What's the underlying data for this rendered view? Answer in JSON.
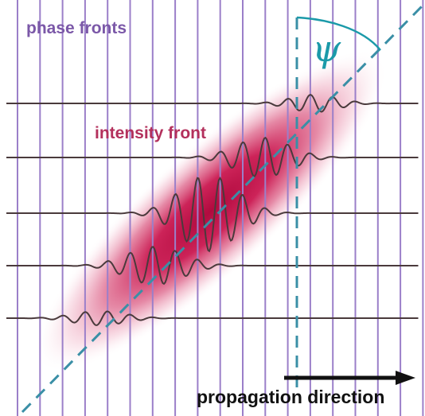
{
  "labels": {
    "phase_fronts": "phase fronts",
    "intensity_front": "intensity front",
    "angle_symbol": "ψ",
    "propagation": "propagation direction"
  },
  "colors": {
    "phase_front_line": "#9b7fc9",
    "intensity_blob": "#c8104a",
    "wave_trace": "#4a3a3c",
    "axis_dashed": "#3a8fa6",
    "angle_arc": "#1b9aa9",
    "arrow": "#111111",
    "phase_label": "#7b58a8",
    "intensity_label": "#b3305c"
  },
  "icons": {
    "arrow": "right-arrow-icon"
  }
}
